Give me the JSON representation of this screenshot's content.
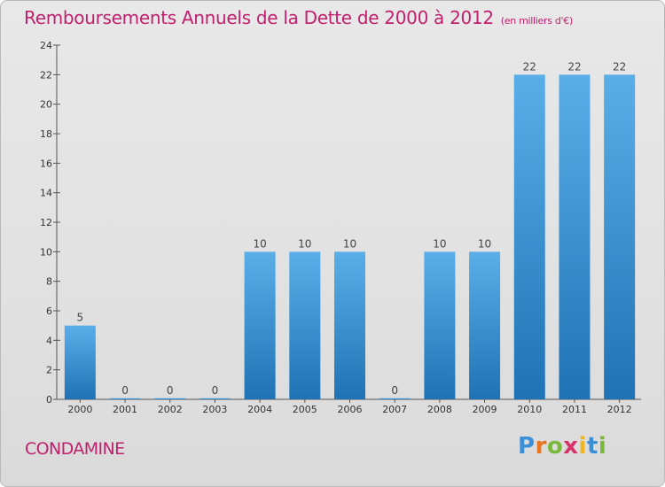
{
  "title": "Remboursements Annuels de la Dette de 2000 à 2012",
  "unit": "(en milliers d'€)",
  "commune": "CONDAMINE",
  "logo": {
    "p": "P",
    "r": "r",
    "o": "o",
    "x": "x",
    "i1": "i",
    "t": "t",
    "i2": "i"
  },
  "colors": {
    "title": "#c0206e",
    "bar_top": "#5aaee8",
    "bar_bottom": "#1f73b5"
  },
  "chart_data": {
    "type": "bar",
    "categories": [
      "2000",
      "2001",
      "2002",
      "2003",
      "2004",
      "2005",
      "2006",
      "2007",
      "2008",
      "2009",
      "2010",
      "2011",
      "2012"
    ],
    "values": [
      5,
      0,
      0,
      0,
      10,
      10,
      10,
      0,
      10,
      10,
      22,
      22,
      22
    ],
    "value_labels": [
      "5",
      "0",
      "0",
      "0",
      "10",
      "10",
      "10",
      "0",
      "10",
      "10",
      "22",
      "22",
      "22"
    ],
    "ylim": [
      0,
      24
    ],
    "yticks": [
      "0",
      "2",
      "4",
      "6",
      "8",
      "10",
      "12",
      "14",
      "16",
      "18",
      "20",
      "22",
      "24"
    ],
    "grid": false
  }
}
